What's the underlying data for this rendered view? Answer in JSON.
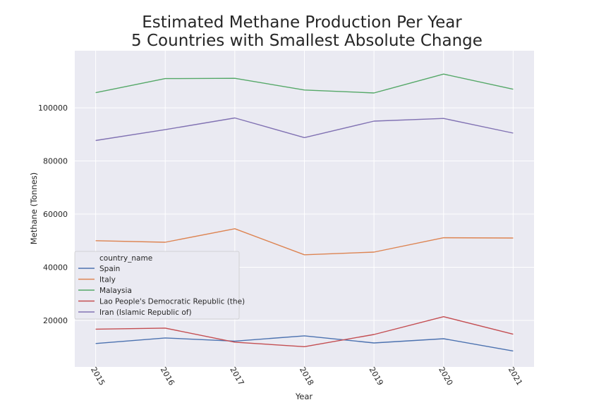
{
  "chart_data": {
    "type": "line",
    "title": [
      "Estimated Methane Production Per Year",
      "5 Countries with Smallest Absolute Change"
    ],
    "xlabel": "Year",
    "ylabel": "Methane (Tonnes)",
    "x": [
      2015,
      2016,
      2017,
      2018,
      2019,
      2020,
      2021
    ],
    "xticks": [
      "2015",
      "2016",
      "2017",
      "2018",
      "2019",
      "2020",
      "2021"
    ],
    "yticks": [
      20000,
      40000,
      60000,
      80000,
      100000
    ],
    "ytick_labels": [
      "20000",
      "40000",
      "60000",
      "80000",
      "100000"
    ],
    "ylim": [
      2500,
      121500
    ],
    "xlim": [
      2014.7,
      2021.3
    ],
    "grid": true,
    "legend": {
      "title": "country_name",
      "placement": "center-left"
    },
    "series": [
      {
        "name": "Spain",
        "color": "#4c72b0",
        "values": [
          11300,
          13400,
          12200,
          14200,
          11500,
          13100,
          8500
        ]
      },
      {
        "name": "Italy",
        "color": "#dd8452",
        "values": [
          50000,
          49400,
          54500,
          44700,
          45700,
          51100,
          51000
        ]
      },
      {
        "name": "Malaysia",
        "color": "#55a868",
        "values": [
          105700,
          111000,
          111100,
          106700,
          105600,
          112700,
          107000
        ]
      },
      {
        "name": "Lao People's Democratic Republic (the)",
        "color": "#c44e52",
        "values": [
          16700,
          17100,
          11800,
          10100,
          14700,
          21400,
          14800
        ]
      },
      {
        "name": "Iran (Islamic Republic of)",
        "color": "#8172b3",
        "values": [
          87700,
          91800,
          96200,
          88800,
          95000,
          96000,
          90500
        ]
      }
    ]
  }
}
